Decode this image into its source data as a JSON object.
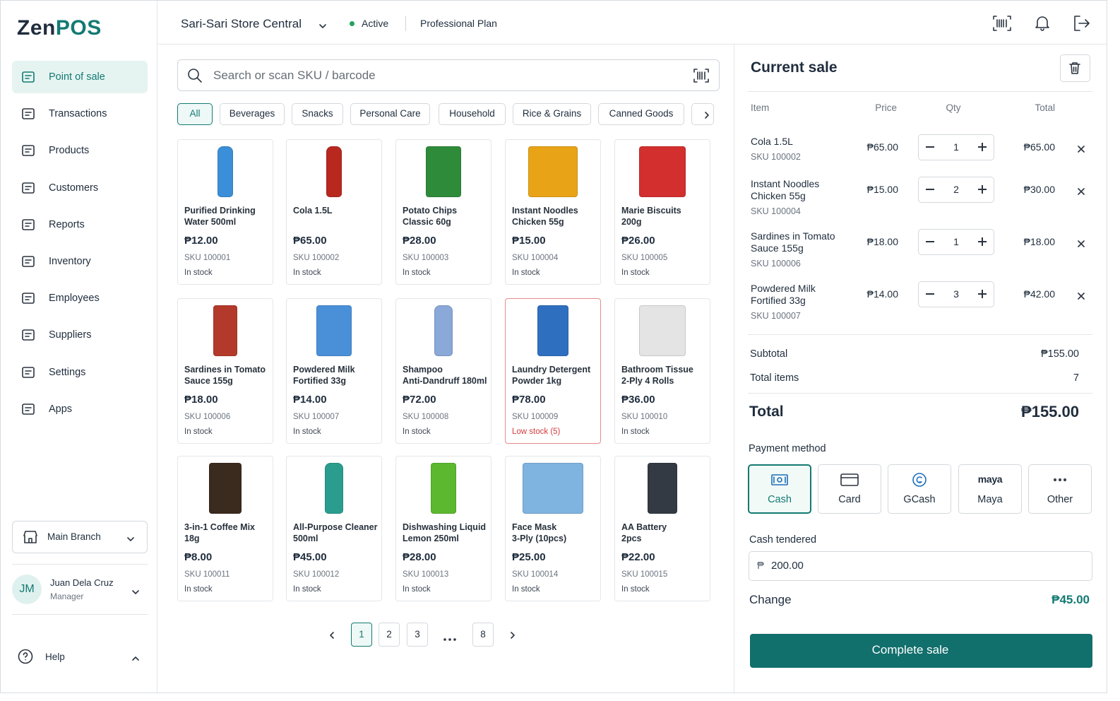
{
  "brand": {
    "first": "Zen",
    "second": "POS"
  },
  "nav": [
    "Point of sale",
    "Transactions",
    "Products",
    "Customers",
    "Reports",
    "Inventory",
    "Employees",
    "Suppliers",
    "Settings",
    "Apps"
  ],
  "branch": "Main Branch",
  "user": {
    "initials": "JM",
    "name": "Juan Dela Cruz",
    "role": "Manager"
  },
  "help": "Help",
  "header": {
    "store": "Sari-Sari Store Central",
    "status": "Active",
    "plan": "Professional Plan"
  },
  "search": {
    "placeholder": "Search or scan SKU / barcode"
  },
  "categories": [
    "All",
    "Beverages",
    "Snacks",
    "Personal Care",
    "Household",
    "Rice & Grains",
    "Canned Goods"
  ],
  "products": [
    {
      "name": [
        "Purified Drinking",
        "Water 500ml"
      ],
      "price": "₱12.00",
      "sku": "SKU 100001",
      "stock": "In stock"
    },
    {
      "name": [
        "Cola 1.5L"
      ],
      "price": "₱65.00",
      "sku": "SKU 100002",
      "stock": "In stock"
    },
    {
      "name": [
        "Potato Chips",
        "Classic 60g"
      ],
      "price": "₱28.00",
      "sku": "SKU 100003",
      "stock": "In stock"
    },
    {
      "name": [
        "Instant Noodles",
        "Chicken 55g"
      ],
      "price": "₱15.00",
      "sku": "SKU 100004",
      "stock": "In stock"
    },
    {
      "name": [
        "Marie Biscuits",
        "200g"
      ],
      "price": "₱26.00",
      "sku": "SKU 100005",
      "stock": "In stock"
    },
    {
      "name": [
        "Sardines in Tomato",
        "Sauce 155g"
      ],
      "price": "₱18.00",
      "sku": "SKU 100006",
      "stock": "In stock"
    },
    {
      "name": [
        "Powdered Milk",
        "Fortified 33g"
      ],
      "price": "₱14.00",
      "sku": "SKU 100007",
      "stock": "In stock"
    },
    {
      "name": [
        "Shampoo",
        "Anti-Dandruff 180ml"
      ],
      "price": "₱72.00",
      "sku": "SKU 100008",
      "stock": "In stock"
    },
    {
      "name": [
        "Laundry Detergent",
        "Powder 1kg"
      ],
      "price": "₱78.00",
      "sku": "SKU 100009",
      "stock": "Low stock (5)"
    },
    {
      "name": [
        "Bathroom Tissue",
        "2-Ply 4 Rolls"
      ],
      "price": "₱36.00",
      "sku": "SKU 100010",
      "stock": "In stock"
    },
    {
      "name": [
        "3-in-1 Coffee Mix",
        "18g"
      ],
      "price": "₱8.00",
      "sku": "SKU 100011",
      "stock": "In stock"
    },
    {
      "name": [
        "All-Purpose Cleaner",
        "500ml"
      ],
      "price": "₱45.00",
      "sku": "SKU 100012",
      "stock": "In stock"
    },
    {
      "name": [
        "Dishwashing Liquid",
        "Lemon 250ml"
      ],
      "price": "₱28.00",
      "sku": "SKU 100013",
      "stock": "In stock"
    },
    {
      "name": [
        "Face Mask",
        "3-Ply (10pcs)"
      ],
      "price": "₱25.00",
      "sku": "SKU 100014",
      "stock": "In stock"
    },
    {
      "name": [
        "AA Battery",
        "2pcs"
      ],
      "price": "₱22.00",
      "sku": "SKU 100015",
      "stock": "In stock"
    }
  ],
  "pagination": [
    "1",
    "2",
    "3",
    "8"
  ],
  "cart": {
    "title": "Current sale",
    "columns": [
      "Item",
      "Price",
      "Qty",
      "Total"
    ],
    "items": [
      {
        "name": [
          "Cola 1.5L"
        ],
        "sku": "SKU 100002",
        "price": "₱65.00",
        "qty": 1,
        "total": "₱65.00"
      },
      {
        "name": [
          "Instant Noodles",
          "Chicken 55g"
        ],
        "sku": "SKU 100004",
        "price": "₱15.00",
        "qty": 2,
        "total": "₱30.00"
      },
      {
        "name": [
          "Sardines in Tomato",
          "Sauce 155g"
        ],
        "sku": "SKU 100006",
        "price": "₱18.00",
        "qty": 1,
        "total": "₱18.00"
      },
      {
        "name": [
          "Powdered Milk",
          "Fortified 33g"
        ],
        "sku": "SKU 100007",
        "price": "₱14.00",
        "qty": 3,
        "total": "₱42.00"
      }
    ],
    "subtotal": {
      "label": "Subtotal",
      "value": "₱155.00"
    },
    "total_items": {
      "label": "Total items",
      "value": 7
    },
    "total": {
      "label": "Total",
      "value": "₱155.00"
    },
    "payment_label": "Payment method",
    "methods": [
      {
        "label": "Cash"
      },
      {
        "label": "Card"
      },
      {
        "label": "GCash"
      },
      {
        "logo": "maya",
        "label": "Maya"
      },
      {
        "label": "Other"
      }
    ],
    "tendered": {
      "label": "Cash tendered",
      "currency": "₱",
      "value": "200.00"
    },
    "change": {
      "label": "Change",
      "value": "₱45.00"
    },
    "button": "Complete sale"
  }
}
